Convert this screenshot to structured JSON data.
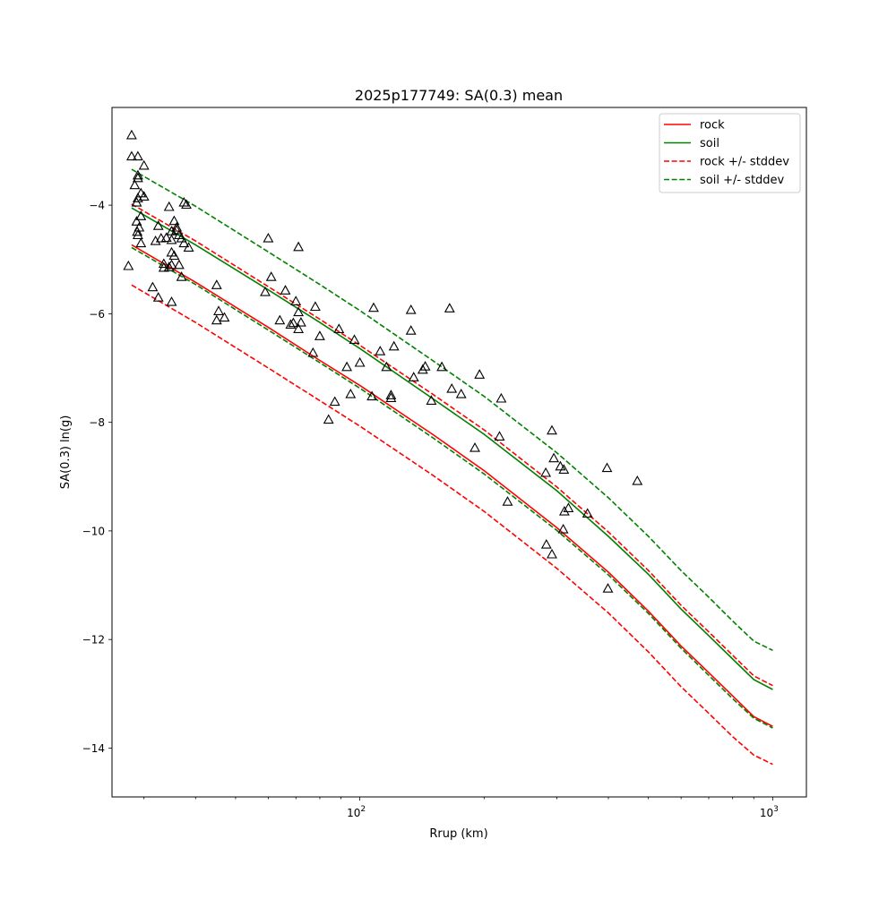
{
  "chart_data": {
    "type": "scatter",
    "title": "2025p177749: SA(0.3) mean",
    "xlabel": "Rrup (km)",
    "ylabel": "SA(0.3) ln(g)",
    "xscale": "log",
    "xlim": [
      25.1,
      1207
    ],
    "ylim": [
      -14.9,
      -2.2
    ],
    "grid": false,
    "legend_position": "top-right",
    "x_ticks": [
      {
        "value": 100,
        "base": "10",
        "exp": "2"
      },
      {
        "value": 1000,
        "base": "10",
        "exp": "3"
      }
    ],
    "x_minor_ticks": [
      30,
      40,
      50,
      60,
      70,
      80,
      90,
      200,
      300,
      400,
      500,
      600,
      700,
      800,
      900
    ],
    "y_ticks": [
      -4,
      -6,
      -8,
      -10,
      -12,
      -14
    ],
    "y_tick_labels": [
      "−4",
      "−6",
      "−8",
      "−10",
      "−12",
      "−14"
    ],
    "line_x": [
      28.0,
      40,
      60,
      80,
      100,
      150,
      200,
      300,
      400,
      500,
      600,
      700,
      800,
      900,
      1000
    ],
    "series": [
      {
        "name": "rock",
        "color": "#ff0000",
        "style": "solid",
        "y": [
          -4.73,
          -5.42,
          -6.25,
          -6.86,
          -7.32,
          -8.22,
          -8.89,
          -9.94,
          -10.76,
          -11.48,
          -12.12,
          -12.61,
          -13.04,
          -13.42,
          -13.6
        ]
      },
      {
        "name": "soil",
        "color": "#008000",
        "style": "solid",
        "y": [
          -4.05,
          -4.73,
          -5.56,
          -6.16,
          -6.64,
          -7.56,
          -8.22,
          -9.26,
          -10.1,
          -10.8,
          -11.44,
          -11.93,
          -12.36,
          -12.74,
          -12.92
        ]
      },
      {
        "name": "rock +/- stddev",
        "color": "#ff0000",
        "style": "dashed",
        "y": [
          -3.98,
          -4.66,
          -5.5,
          -6.1,
          -6.58,
          -7.48,
          -8.14,
          -9.19,
          -10.02,
          -10.73,
          -11.37,
          -11.86,
          -12.29,
          -12.67,
          -12.85
        ]
      },
      {
        "name": "",
        "color": "#ff0000",
        "style": "dashed",
        "y": [
          -5.47,
          -6.16,
          -7.0,
          -7.6,
          -8.07,
          -8.97,
          -9.64,
          -10.69,
          -11.51,
          -12.23,
          -12.87,
          -13.36,
          -13.79,
          -14.13,
          -14.3
        ]
      },
      {
        "name": "soil +/- stddev",
        "color": "#008000",
        "style": "dashed",
        "y": [
          -3.34,
          -4.02,
          -4.86,
          -5.46,
          -5.94,
          -6.86,
          -7.52,
          -8.56,
          -9.39,
          -10.1,
          -10.73,
          -11.22,
          -11.66,
          -12.03,
          -12.2
        ]
      },
      {
        "name": "",
        "color": "#008000",
        "style": "dashed",
        "y": [
          -4.78,
          -5.46,
          -6.3,
          -6.9,
          -7.37,
          -8.28,
          -8.95,
          -9.99,
          -10.81,
          -11.52,
          -12.16,
          -12.66,
          -13.09,
          -13.45,
          -13.63
        ]
      }
    ],
    "points": [
      [
        28.0,
        -2.71
      ],
      [
        28.0,
        -3.1
      ],
      [
        29.0,
        -3.1
      ],
      [
        30.0,
        -3.27
      ],
      [
        29.0,
        -3.45
      ],
      [
        29.0,
        -3.5
      ],
      [
        28.5,
        -3.63
      ],
      [
        29.5,
        -3.78
      ],
      [
        30.0,
        -3.84
      ],
      [
        29.0,
        -3.87
      ],
      [
        28.8,
        -3.95
      ],
      [
        29.5,
        -4.2
      ],
      [
        28.8,
        -4.3
      ],
      [
        29.2,
        -4.41
      ],
      [
        28.9,
        -4.49
      ],
      [
        29.0,
        -4.55
      ],
      [
        29.5,
        -4.7
      ],
      [
        27.5,
        -5.12
      ],
      [
        31.5,
        -5.51
      ],
      [
        32.5,
        -5.7
      ],
      [
        32.0,
        -4.66
      ],
      [
        33.0,
        -4.61
      ],
      [
        34.0,
        -4.6
      ],
      [
        32.5,
        -4.38
      ],
      [
        34.5,
        -4.03
      ],
      [
        35.0,
        -4.48
      ],
      [
        33.5,
        -5.08
      ],
      [
        33.5,
        -5.15
      ],
      [
        34.5,
        -5.14
      ],
      [
        35.0,
        -4.64
      ],
      [
        35.0,
        -4.87
      ],
      [
        35.5,
        -4.93
      ],
      [
        35.0,
        -5.1
      ],
      [
        35.5,
        -4.29
      ],
      [
        36.0,
        -4.41
      ],
      [
        36.0,
        -4.46
      ],
      [
        36.5,
        -4.55
      ],
      [
        37.0,
        -4.61
      ],
      [
        37.5,
        -4.7
      ],
      [
        38.5,
        -4.78
      ],
      [
        36.5,
        -5.1
      ],
      [
        37.0,
        -5.32
      ],
      [
        37.5,
        -3.95
      ],
      [
        38.0,
        -3.99
      ],
      [
        35.0,
        -5.78
      ],
      [
        45.0,
        -5.47
      ],
      [
        45.5,
        -5.95
      ],
      [
        45.0,
        -6.12
      ],
      [
        47.0,
        -6.07
      ],
      [
        60.0,
        -4.61
      ],
      [
        59.0,
        -5.6
      ],
      [
        61.0,
        -5.32
      ],
      [
        64.0,
        -6.12
      ],
      [
        66.0,
        -5.57
      ],
      [
        68.0,
        -6.2
      ],
      [
        69.0,
        -6.17
      ],
      [
        70.0,
        -5.77
      ],
      [
        71.0,
        -5.97
      ],
      [
        71.0,
        -6.28
      ],
      [
        72.0,
        -6.16
      ],
      [
        71.0,
        -4.77
      ],
      [
        77.0,
        -6.72
      ],
      [
        78.0,
        -5.87
      ],
      [
        80.0,
        -6.41
      ],
      [
        84.0,
        -7.95
      ],
      [
        87.0,
        -7.62
      ],
      [
        89.0,
        -6.28
      ],
      [
        93.0,
        -6.98
      ],
      [
        95.0,
        -7.48
      ],
      [
        97.0,
        -6.48
      ],
      [
        100.0,
        -6.9
      ],
      [
        107.0,
        -7.52
      ],
      [
        108.0,
        -5.89
      ],
      [
        112.0,
        -6.69
      ],
      [
        116.0,
        -6.98
      ],
      [
        119.0,
        -7.5
      ],
      [
        119.0,
        -7.55
      ],
      [
        121.0,
        -6.6
      ],
      [
        133.0,
        -5.93
      ],
      [
        133.0,
        -6.31
      ],
      [
        135.0,
        -7.17
      ],
      [
        142.0,
        -7.03
      ],
      [
        144.0,
        -6.97
      ],
      [
        149.0,
        -7.6
      ],
      [
        158.0,
        -6.98
      ],
      [
        165.0,
        -5.9
      ],
      [
        167.0,
        -7.38
      ],
      [
        176.0,
        -7.48
      ],
      [
        190.0,
        -8.47
      ],
      [
        195.0,
        -7.12
      ],
      [
        218.0,
        -8.26
      ],
      [
        220.0,
        -7.56
      ],
      [
        228.0,
        -9.46
      ],
      [
        282.0,
        -8.93
      ],
      [
        283.0,
        -10.25
      ],
      [
        292.0,
        -10.43
      ],
      [
        292.0,
        -8.15
      ],
      [
        295.0,
        -8.66
      ],
      [
        306.0,
        -8.81
      ],
      [
        311.0,
        -9.97
      ],
      [
        312.0,
        -8.87
      ],
      [
        313.0,
        -9.64
      ],
      [
        320.0,
        -9.58
      ],
      [
        356.0,
        -9.68
      ],
      [
        397.0,
        -8.84
      ],
      [
        399.0,
        -11.06
      ],
      [
        470.0,
        -9.08
      ]
    ]
  }
}
